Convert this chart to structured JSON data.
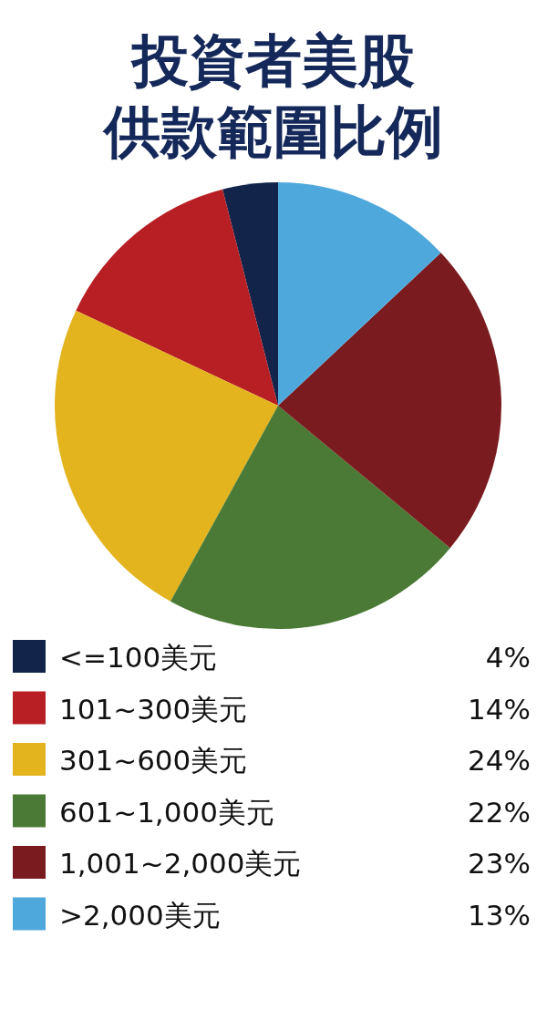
{
  "chart_data": {
    "type": "pie",
    "title": "投資者美股供款範圍比例",
    "categories": [
      "<=100美元",
      "101~300美元",
      "301~600美元",
      "601~1,000美元",
      "1,001~2,000美元",
      ">2,000美元"
    ],
    "values": [
      4,
      14,
      24,
      22,
      23,
      13
    ],
    "colors": [
      "#13244b",
      "#b81f24",
      "#e3b41e",
      "#4a7a35",
      "#7a1c1f",
      "#4fa8dc"
    ],
    "value_labels": [
      "4%",
      "14%",
      "24%",
      "22%",
      "23%",
      "13%"
    ],
    "legend": "bottom"
  }
}
